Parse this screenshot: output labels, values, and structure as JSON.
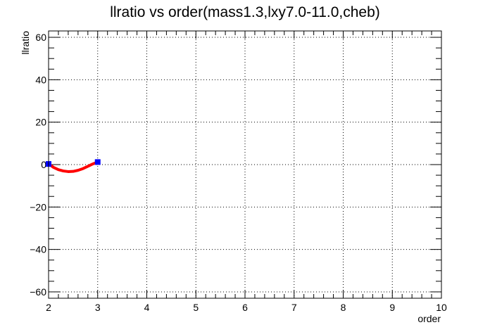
{
  "chart_data": {
    "type": "line",
    "title": "llratio vs order(mass1.3,lxy7.0-11.0,cheb)",
    "xlabel": "order",
    "ylabel": "llratio",
    "xlim": [
      2,
      10
    ],
    "ylim": [
      -63,
      63
    ],
    "xticks": [
      2,
      3,
      4,
      5,
      6,
      7,
      8,
      9,
      10
    ],
    "yticks": [
      -60,
      -40,
      -20,
      0,
      20,
      40,
      60
    ],
    "grid": true,
    "series": [
      {
        "kind": "markers",
        "color": "#0000ff",
        "x": [
          2,
          3
        ],
        "y": [
          0.3,
          1.2
        ]
      },
      {
        "kind": "curve",
        "color": "#ff0000",
        "x": [
          2.0,
          2.1,
          2.2,
          2.3,
          2.4,
          2.5,
          2.6,
          2.7,
          2.8,
          2.9,
          3.0
        ],
        "y": [
          0.3,
          -1.3,
          -2.4,
          -3.0,
          -3.3,
          -3.2,
          -2.7,
          -1.9,
          -0.8,
          0.3,
          1.2
        ]
      }
    ]
  }
}
